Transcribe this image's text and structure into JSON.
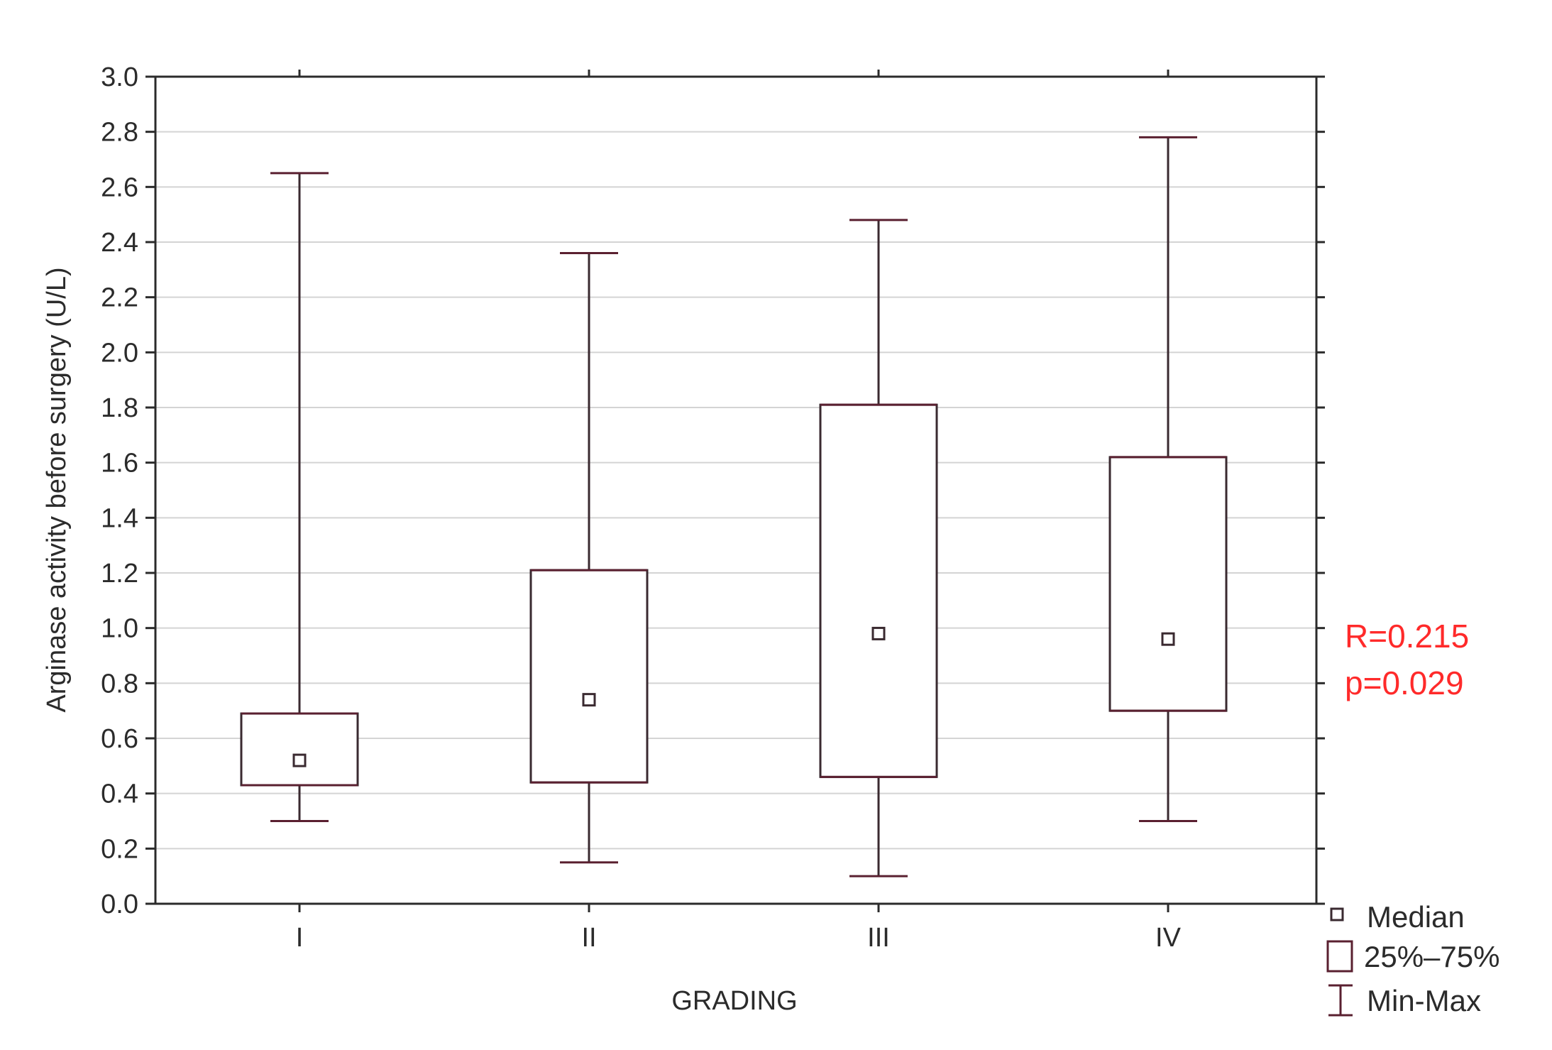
{
  "chart_data": {
    "type": "boxplot",
    "xlabel": "GRADING",
    "ylabel": "Arginase activity before surgery (U/L)",
    "ylim": [
      0,
      3.0
    ],
    "yticks": [
      0.0,
      0.2,
      0.4,
      0.6,
      0.8,
      1.0,
      1.2,
      1.4,
      1.6,
      1.8,
      2.0,
      2.2,
      2.4,
      2.6,
      2.8,
      3.0
    ],
    "ytick_labels": [
      "0.0",
      "0.2",
      "0.4",
      "0.6",
      "0.8",
      "1.0",
      "1.2",
      "1.4",
      "1.6",
      "1.8",
      "2.0",
      "2.2",
      "2.4",
      "2.6",
      "2.8",
      "3.0"
    ],
    "grid": true,
    "categories": [
      "I",
      "II",
      "III",
      "IV"
    ],
    "boxes": [
      {
        "category": "I",
        "min": 0.3,
        "q1": 0.43,
        "median": 0.52,
        "q3": 0.69,
        "max": 2.65
      },
      {
        "category": "II",
        "min": 0.15,
        "q1": 0.44,
        "median": 0.74,
        "q3": 1.21,
        "max": 2.36
      },
      {
        "category": "III",
        "min": 0.1,
        "q1": 0.46,
        "median": 0.98,
        "q3": 1.81,
        "max": 2.48
      },
      {
        "category": "IV",
        "min": 0.3,
        "q1": 0.7,
        "median": 0.96,
        "q3": 1.62,
        "max": 2.78
      }
    ],
    "legend": {
      "placement": "bottom-right",
      "entries": [
        "Median",
        "25%–75%",
        "Min-Max"
      ]
    },
    "annotations": [
      "R=0.215",
      "p=0.029"
    ],
    "colors": {
      "box_stroke": "#3a2a30",
      "whisker": "#5a2030",
      "grid": "#d4d4d4",
      "annotation": "#ff2a2a"
    }
  }
}
